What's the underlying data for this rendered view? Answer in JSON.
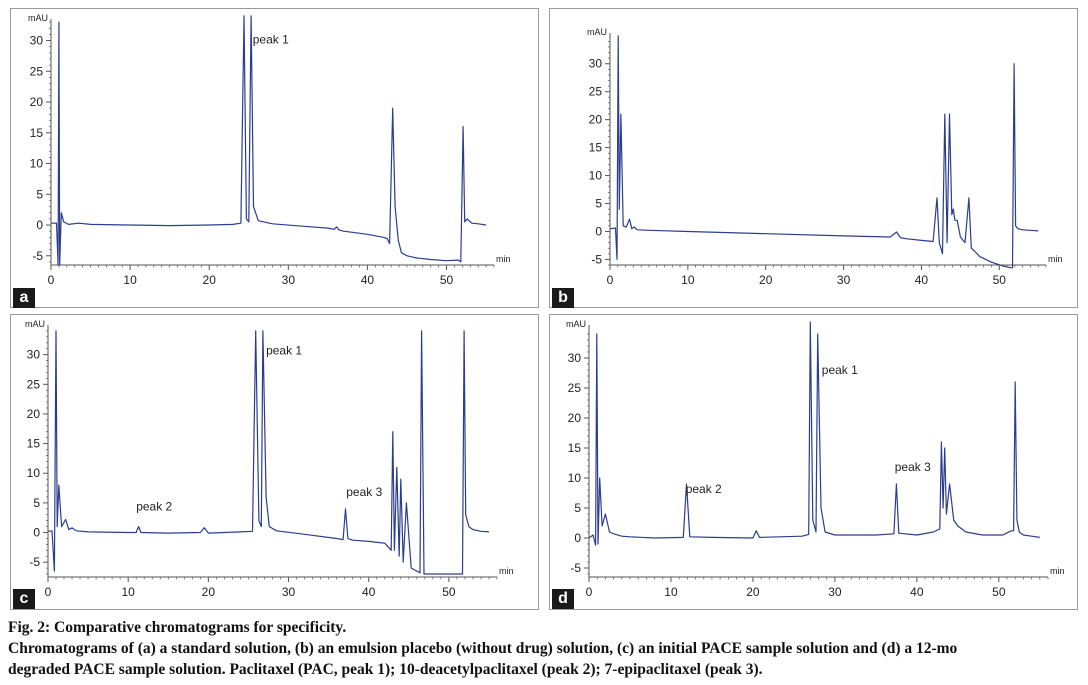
{
  "figure": {
    "caption_title": "Fig. 2: Comparative chromatograms for specificity.",
    "caption_line1": "Chromatograms of (a) a standard solution, (b) an emulsion placebo (without drug) solution, (c) an initial PACE sample solution and (d) a 12-mo",
    "caption_line2": "degraded PACE sample solution. Paclitaxel (PAC, peak 1); 10-deacetylpaclitaxel (peak 2); 7-epipaclitaxel (peak 3)."
  },
  "colors": {
    "trace": "#2b3d8f",
    "axis": "#555555",
    "label_bg": "#1a1a1a"
  },
  "chart_data": [
    {
      "panel": "a",
      "type": "line",
      "xlabel": "min",
      "ylabel": "mAU",
      "xlim": [
        0,
        56
      ],
      "ylim": [
        -6.5,
        33.5
      ],
      "xticks": [
        0,
        10,
        20,
        30,
        40,
        50
      ],
      "yticks": [
        -5,
        0,
        5,
        10,
        15,
        20,
        25,
        30
      ],
      "annotations": [
        {
          "text": "peak 1",
          "x": 25.5,
          "y": 29.5
        }
      ],
      "series": [
        {
          "x": [
            0,
            0.7,
            0.9,
            1.0,
            1.1,
            1.3,
            1.6,
            2.2,
            3.5,
            5,
            10,
            15,
            20,
            23,
            24.0,
            24.4,
            24.7,
            25.0,
            25.3,
            25.6,
            26.2,
            28,
            32,
            35,
            35.8,
            36.1,
            36.4,
            37,
            40,
            42,
            42.5,
            42.8,
            43.2,
            43.5,
            43.9,
            44.3,
            45,
            46,
            46.5,
            48,
            50,
            51.5,
            51.8,
            52.1,
            52.3,
            52.6,
            53.2,
            54,
            55
          ],
          "y": [
            0.3,
            0.3,
            -6.5,
            33,
            -6.5,
            2,
            0.5,
            0.1,
            0.3,
            0.1,
            0.0,
            -0.1,
            0.0,
            0.1,
            0.3,
            34,
            1,
            0.5,
            34,
            3,
            0.7,
            0.2,
            -0.2,
            -0.5,
            -0.7,
            -0.3,
            -0.8,
            -1.0,
            -1.5,
            -2.0,
            -2.2,
            -3.0,
            19,
            3,
            -2.5,
            -4.5,
            -5.0,
            -5.3,
            -5.4,
            -5.6,
            -5.8,
            -5.7,
            -6.0,
            16,
            0.5,
            1.0,
            0.3,
            0.2,
            0.0
          ]
        }
      ]
    },
    {
      "panel": "b",
      "type": "line",
      "xlabel": "min",
      "ylabel": "mAU",
      "xlim": [
        0,
        56
      ],
      "ylim": [
        -6,
        35.5
      ],
      "xticks": [
        0,
        10,
        20,
        30,
        40,
        50
      ],
      "yticks": [
        -5,
        0,
        5,
        10,
        15,
        20,
        25,
        30
      ],
      "annotations": [],
      "series": [
        {
          "x": [
            0,
            0.7,
            0.9,
            1.05,
            1.2,
            1.4,
            1.7,
            2.1,
            2.5,
            2.8,
            3.1,
            3.5,
            5,
            10,
            20,
            30,
            36,
            36.8,
            37.3,
            38,
            40,
            41.5,
            42.0,
            42.3,
            42.7,
            43.0,
            43.3,
            43.6,
            43.9,
            44.1,
            44.3,
            44.6,
            45,
            45.6,
            46.1,
            46.4,
            46.8,
            47.5,
            49,
            50.5,
            51.5,
            51.7,
            51.9,
            52.1,
            52.4,
            53,
            54,
            55
          ],
          "y": [
            0.5,
            0.6,
            -5,
            35,
            4,
            21,
            1,
            0.8,
            2.2,
            0.5,
            0.8,
            0.3,
            0.2,
            0.0,
            -0.4,
            -0.8,
            -1.0,
            -0.1,
            -1.1,
            -1.3,
            -1.6,
            -1.8,
            6,
            -2.0,
            -4,
            21,
            -2,
            21,
            3,
            4,
            2,
            2,
            -1,
            -2,
            6,
            -3,
            -3.5,
            -4.5,
            -5.5,
            -6.2,
            -6.5,
            -6.5,
            30,
            1,
            0.5,
            0.3,
            0.2,
            0.1
          ]
        }
      ]
    },
    {
      "panel": "c",
      "type": "line",
      "xlabel": "min",
      "ylabel": "mAU",
      "xlim": [
        0,
        56
      ],
      "ylim": [
        -7.5,
        35
      ],
      "xticks": [
        0,
        10,
        20,
        30,
        40,
        50
      ],
      "yticks": [
        -5,
        0,
        5,
        10,
        15,
        20,
        25,
        30
      ],
      "annotations": [
        {
          "text": "peak 1",
          "x": 27.2,
          "y": 30
        },
        {
          "text": "peak 2",
          "x": 11,
          "y": 3.7
        },
        {
          "text": "peak 3",
          "x": 37.2,
          "y": 6.2
        }
      ],
      "series": [
        {
          "x": [
            0,
            0.5,
            0.8,
            1.0,
            1.15,
            1.35,
            1.7,
            2.2,
            2.6,
            3,
            3.5,
            5,
            10,
            11.0,
            11.3,
            11.6,
            15,
            19,
            19.5,
            20,
            24,
            25.5,
            25.9,
            26.3,
            26.6,
            26.8,
            27.2,
            27.6,
            28.5,
            32,
            36,
            36.8,
            37.1,
            37.4,
            38,
            40,
            42,
            42.8,
            43.0,
            43.2,
            43.5,
            43.8,
            44.0,
            44.3,
            44.7,
            45.3,
            46.0,
            46.4,
            46.6,
            46.9,
            48,
            50,
            51.5,
            51.7,
            51.9,
            52.1,
            52.5,
            53,
            54,
            55
          ],
          "y": [
            0.2,
            0.3,
            -6.5,
            34,
            1,
            8,
            1,
            2.2,
            0.5,
            0.8,
            0.3,
            0.1,
            0.0,
            0.0,
            1,
            0.0,
            -0.1,
            0.0,
            0.8,
            -0.1,
            0.1,
            0.2,
            34,
            2,
            1,
            34,
            6,
            1,
            0.3,
            -0.3,
            -1.0,
            -1.2,
            4,
            -1.0,
            -1.3,
            -1.5,
            -1.8,
            -3,
            17,
            -3,
            11,
            -4,
            9,
            -5,
            5,
            -6,
            -6.5,
            -6.8,
            34,
            -7,
            -7.0,
            -7.0,
            -7.0,
            -7.0,
            34,
            3,
            1,
            0.5,
            0.2,
            0.1
          ]
        }
      ]
    },
    {
      "panel": "d",
      "type": "line",
      "xlabel": "min",
      "ylabel": "mAU",
      "xlim": [
        0,
        56
      ],
      "ylim": [
        -6.5,
        35.5
      ],
      "xticks": [
        0,
        10,
        20,
        30,
        40,
        50
      ],
      "yticks": [
        -5,
        0,
        5,
        10,
        15,
        20,
        25,
        30
      ],
      "annotations": [
        {
          "text": "peak 1",
          "x": 28.4,
          "y": 27.3
        },
        {
          "text": "peak 2",
          "x": 11.8,
          "y": 7.5
        },
        {
          "text": "peak 3",
          "x": 37.3,
          "y": 11.2
        }
      ],
      "series": [
        {
          "x": [
            0,
            0.5,
            0.8,
            0.95,
            1.1,
            1.3,
            1.6,
            2.0,
            2.5,
            3,
            4,
            5,
            8,
            11.5,
            11.9,
            12.3,
            15,
            20,
            20.4,
            20.8,
            26,
            26.8,
            27.0,
            27.3,
            27.7,
            27.9,
            28.3,
            28.8,
            30,
            35,
            37.2,
            37.5,
            37.8,
            40,
            42,
            42.8,
            43.0,
            43.2,
            43.4,
            43.6,
            44.0,
            44.5,
            45,
            46,
            48,
            50.5,
            51.5,
            51.8,
            52.0,
            52.2,
            52.5,
            53,
            54,
            55
          ],
          "y": [
            0.0,
            0.5,
            -1.2,
            34,
            -1,
            10,
            2,
            4,
            1,
            0.7,
            0.3,
            0.2,
            0.0,
            0.1,
            9,
            0.2,
            0.1,
            0.0,
            1.2,
            0.1,
            0.3,
            0.6,
            36,
            3,
            1,
            34,
            5,
            1,
            0.5,
            0.5,
            0.7,
            9,
            0.8,
            0.5,
            1.0,
            1.5,
            16,
            5,
            15,
            4,
            9,
            3,
            2,
            1,
            0.5,
            0.5,
            1.2,
            1.2,
            26,
            3,
            1,
            0.5,
            0.3,
            0.1
          ]
        }
      ]
    }
  ]
}
